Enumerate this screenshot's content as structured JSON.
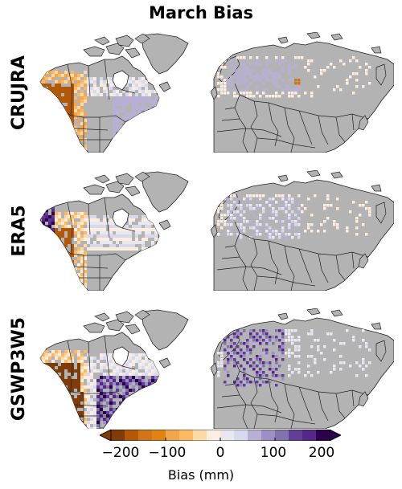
{
  "title": "March Bias",
  "rows": [
    "CRUJRA",
    "ERA5",
    "GSWP3W5"
  ],
  "colorbar": {
    "label": "Bias (mm)",
    "ticks": [
      "−200",
      "−100",
      "0",
      "100",
      "200"
    ],
    "min": -200,
    "max": 200,
    "colors": [
      "#7f3b08",
      "#b35806",
      "#d0751c",
      "#e08214",
      "#f0a54e",
      "#fdb863",
      "#fdd9a6",
      "#fbeee0",
      "#e9e8f0",
      "#d8daeb",
      "#b8b0d4",
      "#9c8fc3",
      "#8073ac",
      "#613f97",
      "#542788",
      "#2d004b"
    ]
  },
  "map_style": {
    "land": "#b3b3b3",
    "coast": "#222222",
    "ocean": "#ffffff"
  }
}
